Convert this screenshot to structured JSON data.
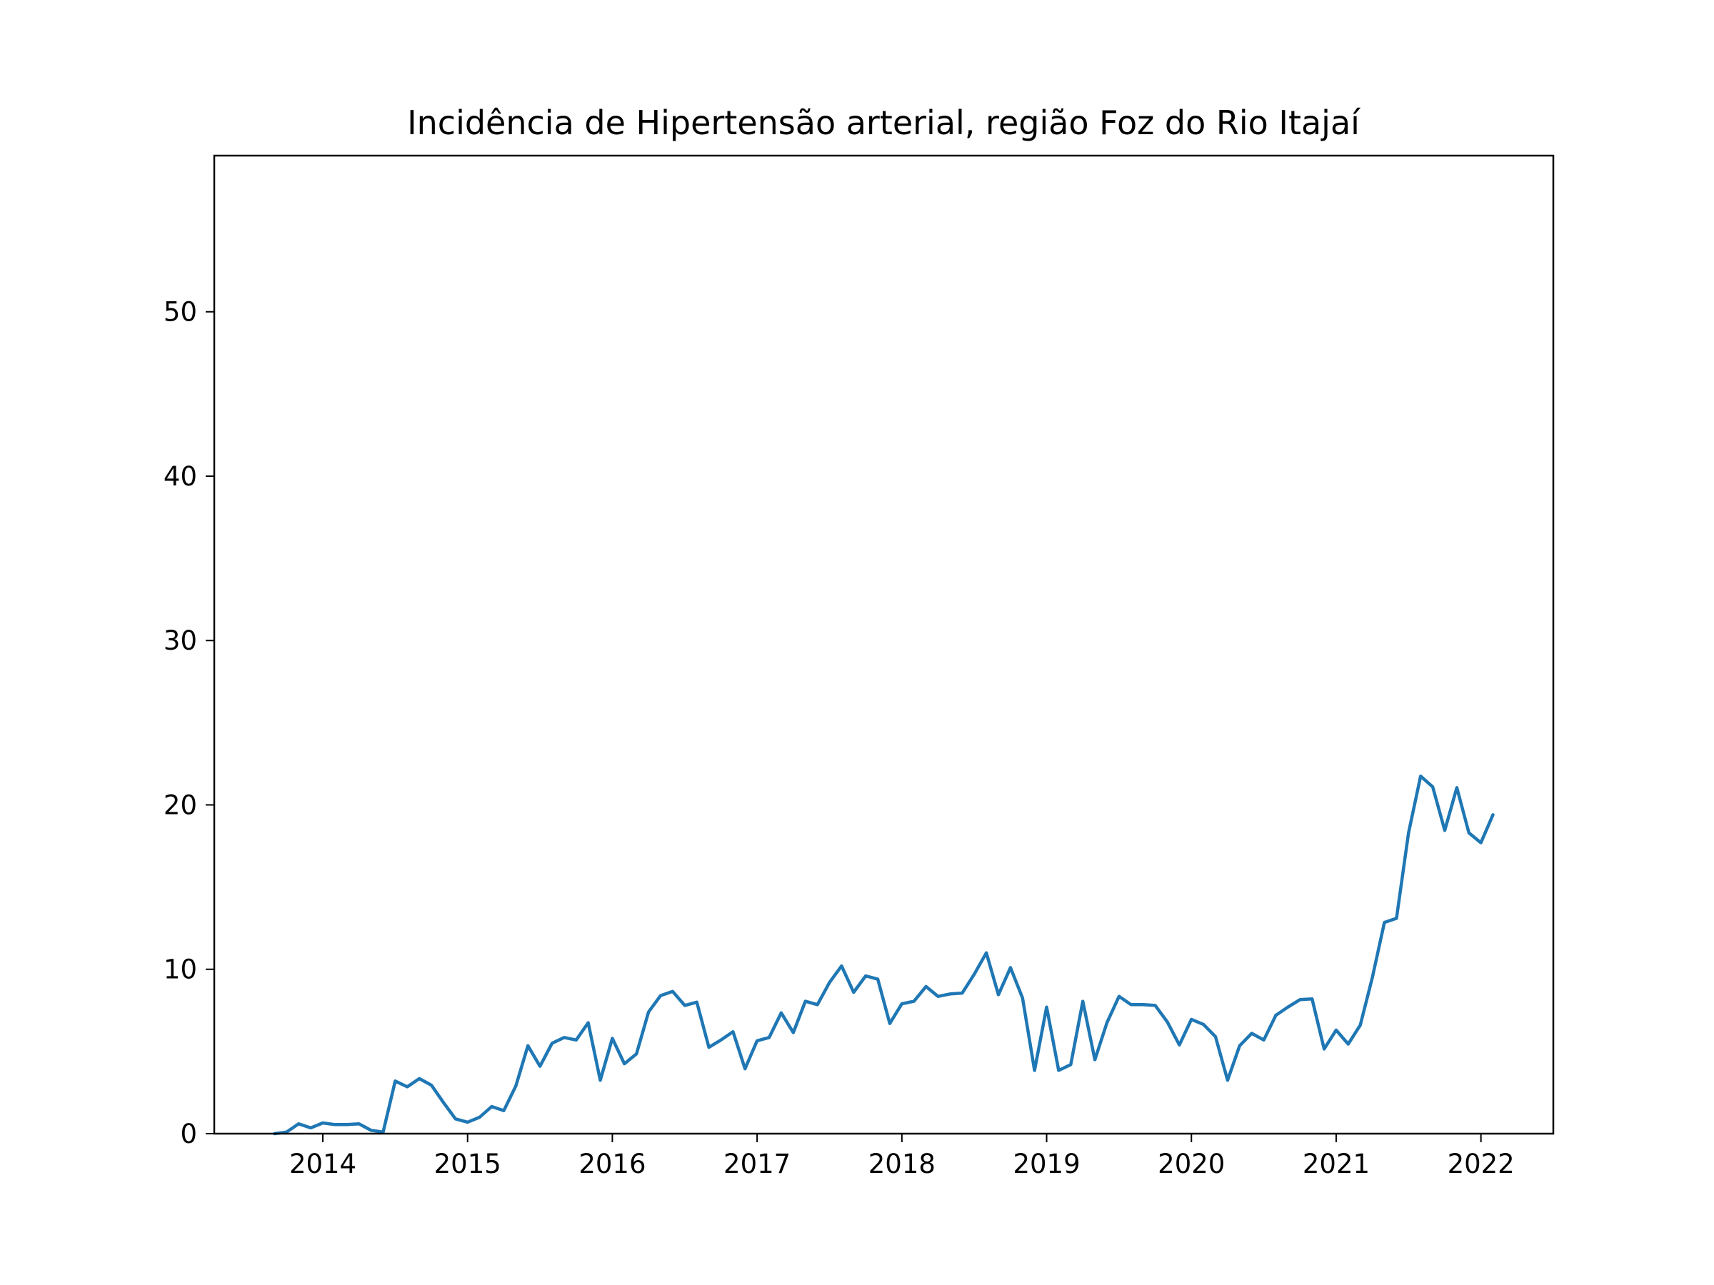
{
  "chart_data": {
    "type": "line",
    "title": "Incidência de Hipertensão arterial, região Foz do Rio Itajaí",
    "xlabel": "",
    "ylabel": "",
    "xlim": [
      2013.25,
      2022.5
    ],
    "ylim": [
      0,
      59.5
    ],
    "x_ticks": [
      2014,
      2015,
      2016,
      2017,
      2018,
      2019,
      2020,
      2021,
      2022
    ],
    "x_tick_labels": [
      "2014",
      "2015",
      "2016",
      "2017",
      "2018",
      "2019",
      "2020",
      "2021",
      "2022"
    ],
    "y_ticks": [
      0,
      10,
      20,
      30,
      40,
      50
    ],
    "y_tick_labels": [
      "0",
      "10",
      "20",
      "30",
      "40",
      "50"
    ],
    "grid": false,
    "legend": "none",
    "series": [
      {
        "color": "#1f77b4",
        "start": "2013-09",
        "frequency": "monthly",
        "values": [
          0.0,
          0.1,
          0.6,
          0.35,
          0.65,
          0.55,
          0.55,
          0.6,
          0.2,
          0.1,
          3.2,
          2.85,
          3.35,
          2.95,
          1.9,
          0.9,
          0.7,
          1.0,
          1.65,
          1.4,
          2.9,
          5.35,
          4.1,
          5.5,
          5.85,
          5.7,
          6.75,
          3.25,
          5.8,
          4.25,
          4.85,
          7.4,
          8.4,
          8.65,
          7.8,
          8.0,
          5.25,
          5.7,
          6.2,
          3.95,
          5.65,
          5.85,
          7.35,
          6.15,
          8.05,
          7.85,
          9.2,
          10.2,
          8.6,
          9.6,
          9.4,
          6.7,
          7.9,
          8.05,
          8.95,
          8.35,
          8.5,
          8.55,
          9.7,
          11.0,
          8.45,
          10.1,
          8.25,
          3.85,
          7.7,
          3.85,
          4.2,
          8.05,
          4.5,
          6.75,
          8.35,
          7.85,
          7.85,
          7.8,
          6.8,
          5.4,
          6.95,
          6.65,
          5.9,
          3.25,
          5.35,
          6.1,
          5.7,
          7.2,
          7.7,
          8.15,
          8.2,
          5.15,
          6.3,
          5.45,
          6.6,
          9.5,
          12.85,
          13.1,
          18.3,
          21.75,
          21.1,
          18.45,
          21.05,
          18.3,
          17.7,
          19.4
        ]
      }
    ]
  }
}
